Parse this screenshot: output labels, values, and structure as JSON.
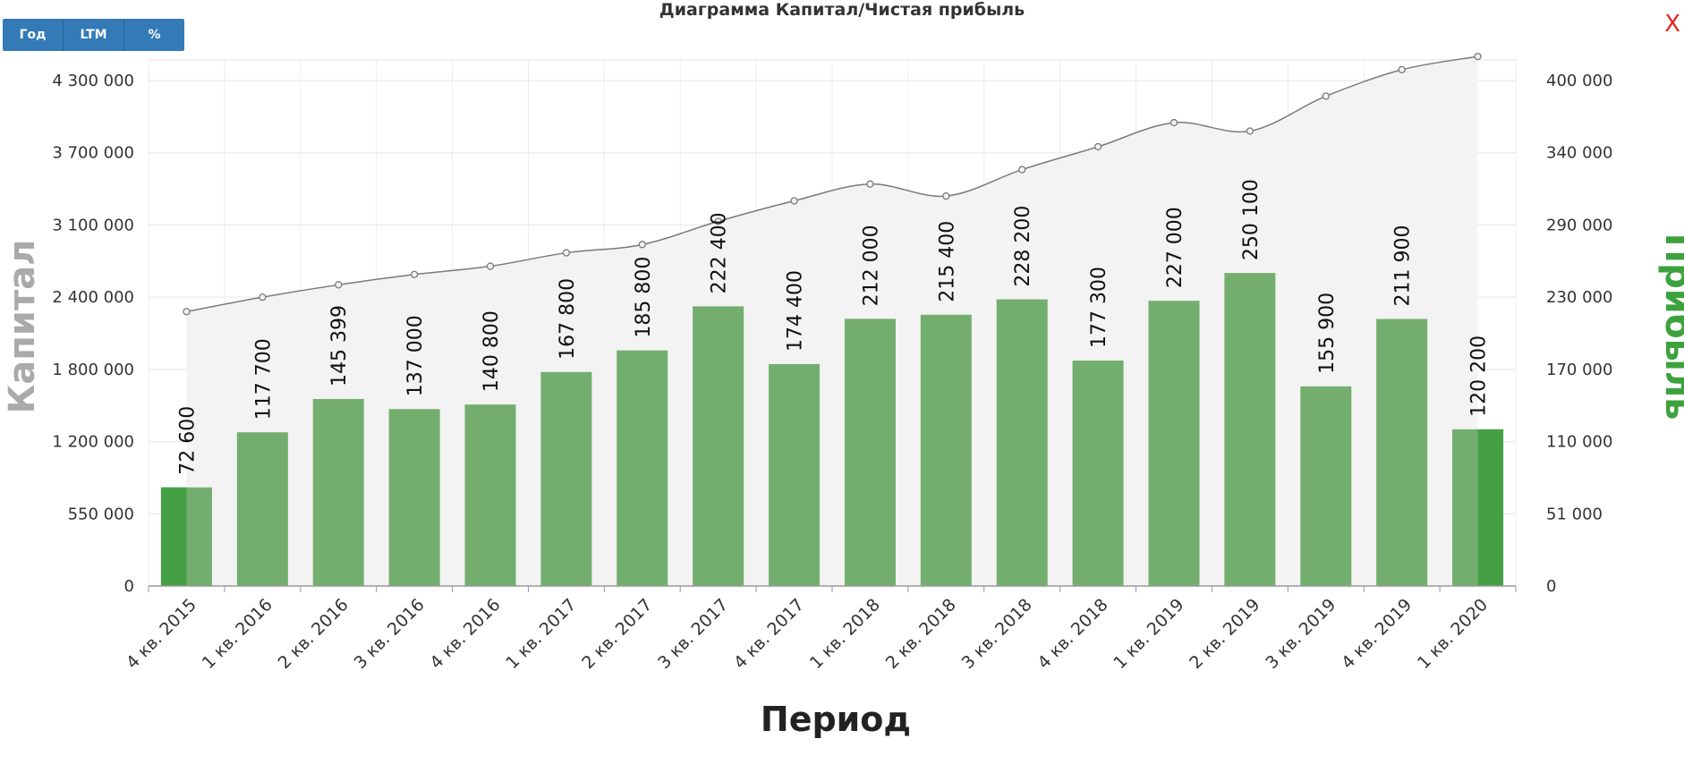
{
  "header": {
    "title": "Диаграмма Капитал/Чистая прибыль",
    "close_label": "X"
  },
  "toolbar": {
    "buttons": [
      "Год",
      "LTM",
      "%"
    ]
  },
  "colors": {
    "bar": "#73ae6f",
    "bar_highlight": "#45a045",
    "area_fill": "#f3f3f3",
    "line": "#7a7a7a",
    "right_axis_label": "#3da23d",
    "left_axis_label": "#aaaaaa"
  },
  "chart_data": {
    "type": "bar",
    "title": "Диаграмма Капитал/Чистая прибыль",
    "xlabel": "Период",
    "ylabel_left": "Капитал",
    "ylabel_right": "Прибыль",
    "categories": [
      "4 кв. 2015",
      "1 кв. 2016",
      "2 кв. 2016",
      "3 кв. 2016",
      "4 кв. 2016",
      "1 кв. 2017",
      "2 кв. 2017",
      "3 кв. 2017",
      "4 кв. 2017",
      "1 кв. 2018",
      "2 кв. 2018",
      "3 кв. 2018",
      "4 кв. 2018",
      "1 кв. 2019",
      "2 кв. 2019",
      "3 кв. 2019",
      "4 кв. 2019",
      "1 кв. 2020"
    ],
    "left_ticks": [
      0,
      550000,
      1200000,
      1800000,
      2400000,
      3100000,
      3700000,
      4300000
    ],
    "left_tick_labels": [
      "0",
      "550 000",
      "1 200 000",
      "1 800 000",
      "2 400 000",
      "3 100 000",
      "3 700 000",
      "4 300 000"
    ],
    "right_ticks": [
      0,
      51000,
      110000,
      170000,
      230000,
      290000,
      340000,
      400000
    ],
    "right_tick_labels": [
      "0",
      "51 000",
      "110 000",
      "170 000",
      "230 000",
      "290 000",
      "340 000",
      "400 000"
    ],
    "series": [
      {
        "type": "bar",
        "axis": "right",
        "values": [
          72600,
          117700,
          145399,
          137000,
          140800,
          167800,
          185800,
          222400,
          174400,
          212000,
          215400,
          228200,
          177300,
          227000,
          250100,
          155900,
          211900,
          120200
        ],
        "labels": [
          "72 600",
          "117 700",
          "145 399",
          "137 000",
          "140 800",
          "167 800",
          "185 800",
          "222 400",
          "174 400",
          "212 000",
          "215 400",
          "228 200",
          "177 300",
          "227 000",
          "250 100",
          "155 900",
          "211 900",
          "120 200"
        ]
      },
      {
        "type": "area",
        "axis": "left",
        "values": [
          2280000,
          2400000,
          2520000,
          2620000,
          2700000,
          2830000,
          2910000,
          3130000,
          3300000,
          3440000,
          3340000,
          3560000,
          3750000,
          3950000,
          3880000,
          4170000,
          4390000,
          4500000
        ]
      }
    ],
    "highlighted_bars": [
      0,
      17
    ],
    "grid": true
  }
}
